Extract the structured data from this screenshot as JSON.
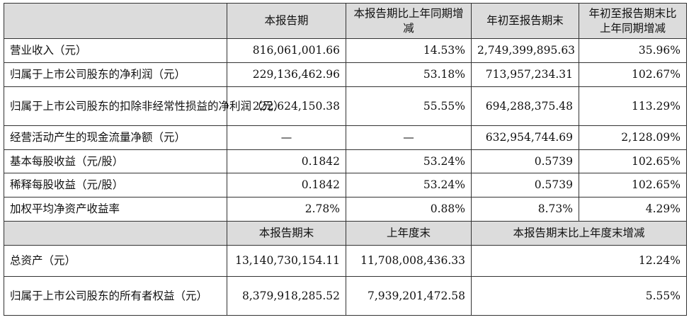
{
  "header1": {
    "col1": "本报告期",
    "col2": "本报告期比上年同期增减",
    "col3": "年初至报告期末",
    "col4": "年初至报告期末比上年同期增减"
  },
  "rows1": [
    {
      "label": "营业收入（元）",
      "v1": "816,061,001.66",
      "v2": "14.53%",
      "v3": "2,749,399,895.63",
      "v4": "35.96%"
    },
    {
      "label": "归属于上市公司股东的净利润（元）",
      "v1": "229,136,462.96",
      "v2": "53.18%",
      "v3": "713,957,234.31",
      "v4": "102.67%"
    },
    {
      "label": "归属于上市公司股东的扣除非经常性损益的净利润（元）",
      "v1": "222,624,150.38",
      "v2": "55.55%",
      "v3": "694,288,375.48",
      "v4": "113.29%"
    },
    {
      "label": "经营活动产生的现金流量净额（元）",
      "v1": "—",
      "v2": "—",
      "v3": "632,954,744.69",
      "v4": "2,128.09%"
    },
    {
      "label": "基本每股收益（元/股）",
      "v1": "0.1842",
      "v2": "53.24%",
      "v3": "0.5739",
      "v4": "102.65%"
    },
    {
      "label": "稀释每股收益（元/股）",
      "v1": "0.1842",
      "v2": "53.24%",
      "v3": "0.5739",
      "v4": "102.65%"
    },
    {
      "label": "加权平均净资产收益率",
      "v1": "2.78%",
      "v2": "0.88%",
      "v3": "8.73%",
      "v4": "4.29%"
    }
  ],
  "header2": {
    "col1": "本报告期末",
    "col2": "上年度末",
    "col3": "本报告期末比上年度末增减"
  },
  "rows2": [
    {
      "label": "总资产（元）",
      "v1": "13,140,730,154.11",
      "v2": "11,708,008,436.33",
      "v3": "12.24%"
    },
    {
      "label": "归属于上市公司股东的所有者权益（元）",
      "v1": "8,379,918,285.52",
      "v2": "7,939,201,472.58",
      "v3": "5.55%"
    }
  ]
}
